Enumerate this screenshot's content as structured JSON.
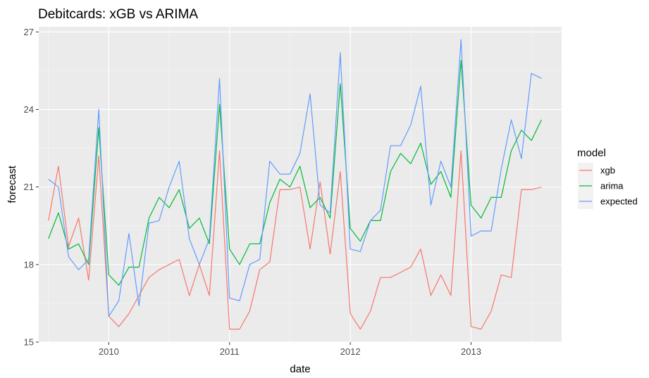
{
  "chart_data": {
    "type": "line",
    "title": "Debitcards: xGB vs ARIMA",
    "xlabel": "date",
    "ylabel": "forecast",
    "xlim": [
      2009.42,
      2013.75
    ],
    "ylim": [
      15,
      27.2
    ],
    "x_ticks": [
      2010,
      2011,
      2012,
      2013
    ],
    "x_tick_labels": [
      "2010",
      "2011",
      "2012",
      "2013"
    ],
    "y_ticks": [
      15,
      18,
      21,
      24,
      27
    ],
    "y_tick_labels": [
      "15",
      "18",
      "21",
      "24",
      "27"
    ],
    "grid": true,
    "legend_title": "model",
    "legend_position": "right",
    "x": [
      2009.5,
      2009.583,
      2009.667,
      2009.75,
      2009.833,
      2009.917,
      2010.0,
      2010.083,
      2010.167,
      2010.25,
      2010.333,
      2010.417,
      2010.5,
      2010.583,
      2010.667,
      2010.75,
      2010.833,
      2010.917,
      2011.0,
      2011.083,
      2011.167,
      2011.25,
      2011.333,
      2011.417,
      2011.5,
      2011.583,
      2011.667,
      2011.75,
      2011.833,
      2011.917,
      2012.0,
      2012.083,
      2012.167,
      2012.25,
      2012.333,
      2012.417,
      2012.5,
      2012.583,
      2012.667,
      2012.75,
      2012.833,
      2012.917,
      2013.0,
      2013.083,
      2013.167,
      2013.25,
      2013.333,
      2013.417,
      2013.5,
      2013.583
    ],
    "series": [
      {
        "name": "xgb",
        "color": "#F8766D",
        "values": [
          19.7,
          21.8,
          18.7,
          19.8,
          17.4,
          22.2,
          16.0,
          15.6,
          16.1,
          16.8,
          17.5,
          17.8,
          18.0,
          18.2,
          16.8,
          18.0,
          16.8,
          22.4,
          15.5,
          15.5,
          16.2,
          17.8,
          18.1,
          20.9,
          20.9,
          21.0,
          18.6,
          21.2,
          18.4,
          21.6,
          16.1,
          15.5,
          16.2,
          17.5,
          17.5,
          17.7,
          17.9,
          18.6,
          16.8,
          17.6,
          16.8,
          22.4,
          15.6,
          15.5,
          16.2,
          17.6,
          17.5,
          20.9,
          20.9,
          21.0
        ]
      },
      {
        "name": "arima",
        "color": "#00BA38",
        "values": [
          19.0,
          20.0,
          18.6,
          18.8,
          18.0,
          23.3,
          17.6,
          17.2,
          17.9,
          17.9,
          19.8,
          20.6,
          20.2,
          20.9,
          19.4,
          19.8,
          18.8,
          24.2,
          18.6,
          18.0,
          18.8,
          18.8,
          20.4,
          21.3,
          21.0,
          21.8,
          20.2,
          20.6,
          19.8,
          25.0,
          19.4,
          18.9,
          19.7,
          19.7,
          21.6,
          22.3,
          21.9,
          22.7,
          21.1,
          21.6,
          20.6,
          25.9,
          20.3,
          19.8,
          20.6,
          20.6,
          22.4,
          23.2,
          22.8,
          23.6
        ]
      },
      {
        "name": "expected",
        "color": "#619CFF",
        "values": [
          21.3,
          21.0,
          18.3,
          17.8,
          18.2,
          24.0,
          16.0,
          16.6,
          19.2,
          16.4,
          19.6,
          19.7,
          21.0,
          22.0,
          19.0,
          18.0,
          19.0,
          25.2,
          16.7,
          16.6,
          18.0,
          18.2,
          22.0,
          21.5,
          21.5,
          22.3,
          24.6,
          20.3,
          20.0,
          26.2,
          18.6,
          18.5,
          19.7,
          20.1,
          22.6,
          22.6,
          23.4,
          24.9,
          20.3,
          22.0,
          21.0,
          26.7,
          19.1,
          19.3,
          19.3,
          21.7,
          23.6,
          22.1,
          25.4,
          25.2
        ]
      }
    ]
  }
}
